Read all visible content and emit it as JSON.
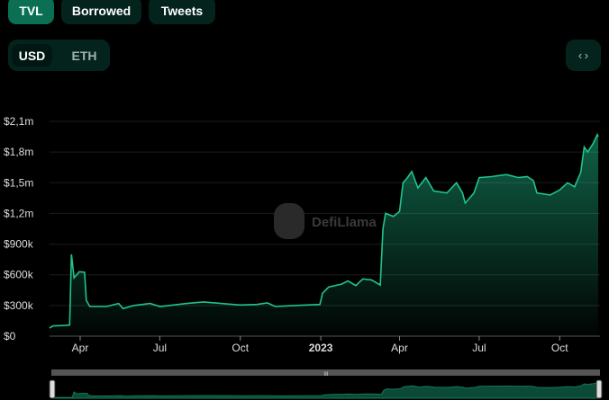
{
  "tabs": [
    {
      "label": "TVL",
      "active": true
    },
    {
      "label": "Borrowed",
      "active": false
    },
    {
      "label": "Tweets",
      "active": false
    }
  ],
  "currency": {
    "options": [
      "USD",
      "ETH"
    ],
    "selected": "USD"
  },
  "embed_icon": "code-brackets-icon",
  "watermark": "DefiLlama",
  "colors": {
    "line": "#1fc48f",
    "accent": "#0b6f53",
    "background": "#000000"
  },
  "chart_data": {
    "type": "area",
    "title": "",
    "xlabel": "",
    "ylabel": "",
    "ylim": [
      0,
      2100000
    ],
    "xlim": [
      "2022-02-25",
      "2023-11-14"
    ],
    "grid": true,
    "y_ticks": [
      {
        "v": 0,
        "label": "$0"
      },
      {
        "v": 300000,
        "label": "$300k"
      },
      {
        "v": 600000,
        "label": "$600k"
      },
      {
        "v": 900000,
        "label": "$900k"
      },
      {
        "v": 1200000,
        "label": "$1,2m"
      },
      {
        "v": 1500000,
        "label": "$1,5m"
      },
      {
        "v": 1800000,
        "label": "$1,8m"
      },
      {
        "v": 2100000,
        "label": "$2,1m"
      }
    ],
    "x_ticks": [
      {
        "d": "2022-04-01",
        "label": "Apr"
      },
      {
        "d": "2022-07-01",
        "label": "Jul"
      },
      {
        "d": "2022-10-01",
        "label": "Oct"
      },
      {
        "d": "2023-01-01",
        "label": "2023",
        "bold": true
      },
      {
        "d": "2023-04-01",
        "label": "Apr"
      },
      {
        "d": "2023-07-01",
        "label": "Jul"
      },
      {
        "d": "2023-10-01",
        "label": "Oct"
      }
    ],
    "series": [
      {
        "points": [
          [
            "2022-02-25",
            80000
          ],
          [
            "2022-03-01",
            100000
          ],
          [
            "2022-03-15",
            105000
          ],
          [
            "2022-03-20",
            110000
          ],
          [
            "2022-03-22",
            800000
          ],
          [
            "2022-03-25",
            570000
          ],
          [
            "2022-03-31",
            630000
          ],
          [
            "2022-04-06",
            625000
          ],
          [
            "2022-04-08",
            350000
          ],
          [
            "2022-04-12",
            290000
          ],
          [
            "2022-05-01",
            290000
          ],
          [
            "2022-05-15",
            320000
          ],
          [
            "2022-05-20",
            270000
          ],
          [
            "2022-06-01",
            300000
          ],
          [
            "2022-06-20",
            320000
          ],
          [
            "2022-07-01",
            290000
          ],
          [
            "2022-08-01",
            320000
          ],
          [
            "2022-08-20",
            335000
          ],
          [
            "2022-09-15",
            315000
          ],
          [
            "2022-10-01",
            305000
          ],
          [
            "2022-10-20",
            310000
          ],
          [
            "2022-11-01",
            325000
          ],
          [
            "2022-11-10",
            290000
          ],
          [
            "2022-12-01",
            300000
          ],
          [
            "2022-12-31",
            310000
          ],
          [
            "2023-01-03",
            420000
          ],
          [
            "2023-01-10",
            480000
          ],
          [
            "2023-01-25",
            510000
          ],
          [
            "2023-02-01",
            540000
          ],
          [
            "2023-02-10",
            495000
          ],
          [
            "2023-02-18",
            560000
          ],
          [
            "2023-02-28",
            550000
          ],
          [
            "2023-03-10",
            500000
          ],
          [
            "2023-03-13",
            1050000
          ],
          [
            "2023-03-16",
            1200000
          ],
          [
            "2023-03-25",
            1170000
          ],
          [
            "2023-04-01",
            1220000
          ],
          [
            "2023-04-05",
            1500000
          ],
          [
            "2023-04-10",
            1550000
          ],
          [
            "2023-04-15",
            1610000
          ],
          [
            "2023-04-22",
            1450000
          ],
          [
            "2023-05-01",
            1550000
          ],
          [
            "2023-05-10",
            1420000
          ],
          [
            "2023-05-25",
            1400000
          ],
          [
            "2023-06-05",
            1500000
          ],
          [
            "2023-06-12",
            1400000
          ],
          [
            "2023-06-15",
            1300000
          ],
          [
            "2023-06-25",
            1400000
          ],
          [
            "2023-07-01",
            1550000
          ],
          [
            "2023-07-15",
            1560000
          ],
          [
            "2023-08-01",
            1580000
          ],
          [
            "2023-08-15",
            1550000
          ],
          [
            "2023-08-25",
            1560000
          ],
          [
            "2023-09-01",
            1520000
          ],
          [
            "2023-09-05",
            1400000
          ],
          [
            "2023-09-20",
            1380000
          ],
          [
            "2023-10-01",
            1430000
          ],
          [
            "2023-10-10",
            1500000
          ],
          [
            "2023-10-18",
            1460000
          ],
          [
            "2023-10-25",
            1600000
          ],
          [
            "2023-10-29",
            1850000
          ],
          [
            "2023-11-02",
            1800000
          ],
          [
            "2023-11-08",
            1880000
          ],
          [
            "2023-11-13",
            1970000
          ],
          [
            "2023-11-14",
            1950000
          ]
        ]
      }
    ]
  }
}
